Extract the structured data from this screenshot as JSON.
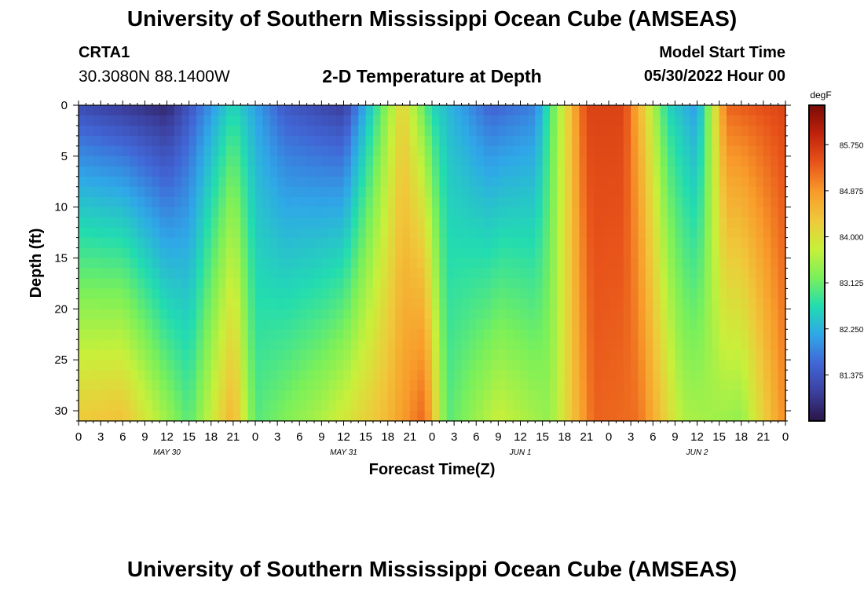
{
  "header": {
    "title": "University of Southern Mississippi Ocean Cube (AMSEAS)",
    "station": "CRTA1",
    "coords": "30.3080N  88.1400W",
    "subtitle": "2-D Temperature at Depth",
    "start_label": "Model Start Time",
    "start_value": "05/30/2022 Hour 00"
  },
  "footer": {
    "title": "University of Southern Mississippi Ocean Cube (AMSEAS)"
  },
  "chart_data": {
    "type": "heatmap",
    "title": "2-D Temperature at Depth",
    "xlabel": "Forecast Time(Z)",
    "ylabel": "Depth (ft)",
    "units": "degF",
    "x_hours": [
      0,
      96
    ],
    "xlim": [
      0,
      96
    ],
    "ylim": [
      0,
      31
    ],
    "x_tick_labels": [
      "0",
      "3",
      "6",
      "9",
      "12",
      "15",
      "18",
      "21",
      "0",
      "3",
      "6",
      "9",
      "12",
      "15",
      "18",
      "21",
      "0",
      "3",
      "6",
      "9",
      "12",
      "15",
      "18",
      "21",
      "0",
      "3",
      "6",
      "9",
      "12",
      "15",
      "18",
      "21",
      "0"
    ],
    "y_ticks": [
      0,
      5,
      10,
      15,
      20,
      25,
      30
    ],
    "date_labels": [
      {
        "label": "MAY 30",
        "hour": 12
      },
      {
        "label": "MAY 31",
        "hour": 36
      },
      {
        "label": "JUN 1",
        "hour": 60
      },
      {
        "label": "JUN 2",
        "hour": 84
      }
    ],
    "colorbar": {
      "min": 80.5,
      "max": 86.5,
      "ticks": [
        "85.750",
        "84.875",
        "84.000",
        "83.125",
        "82.250",
        "81.375"
      ],
      "tick_values": [
        85.75,
        84.875,
        84.0,
        83.125,
        82.25,
        81.375
      ],
      "stops": [
        "#2a1547",
        "#3b3f9e",
        "#4166d6",
        "#2fa7e8",
        "#22dcb0",
        "#7af05a",
        "#c8f03a",
        "#f0c83a",
        "#f89a2a",
        "#e8541a",
        "#c0220c",
        "#7a0c06"
      ]
    },
    "surface_profile": [
      {
        "hour": 0,
        "temp": 81.2
      },
      {
        "hour": 12,
        "temp": 80.7
      },
      {
        "hour": 21,
        "temp": 82.6
      },
      {
        "hour": 28,
        "temp": 81.4
      },
      {
        "hour": 36,
        "temp": 81.0
      },
      {
        "hour": 44,
        "temp": 84.2
      },
      {
        "hour": 48,
        "temp": 82.6
      },
      {
        "hour": 56,
        "temp": 81.5
      },
      {
        "hour": 62,
        "temp": 81.8
      },
      {
        "hour": 69,
        "temp": 85.6
      },
      {
        "hour": 74,
        "temp": 85.6
      },
      {
        "hour": 80,
        "temp": 82.6
      },
      {
        "hour": 84,
        "temp": 82.0
      },
      {
        "hour": 88,
        "temp": 85.3
      },
      {
        "hour": 96,
        "temp": 85.6
      }
    ],
    "bottom_profile": [
      {
        "hour": 0,
        "temp": 84.3
      },
      {
        "hour": 6,
        "temp": 84.4
      },
      {
        "hour": 15,
        "temp": 83.0
      },
      {
        "hour": 21,
        "temp": 84.6
      },
      {
        "hour": 24,
        "temp": 83.0
      },
      {
        "hour": 33,
        "temp": 83.6
      },
      {
        "hour": 42,
        "temp": 84.5
      },
      {
        "hour": 47,
        "temp": 85.3
      },
      {
        "hour": 50,
        "temp": 83.0
      },
      {
        "hour": 57,
        "temp": 83.8
      },
      {
        "hour": 64,
        "temp": 83.4
      },
      {
        "hour": 70,
        "temp": 85.3
      },
      {
        "hour": 76,
        "temp": 85.2
      },
      {
        "hour": 82,
        "temp": 83.6
      },
      {
        "hour": 90,
        "temp": 83.4
      },
      {
        "hour": 96,
        "temp": 85.0
      }
    ]
  }
}
